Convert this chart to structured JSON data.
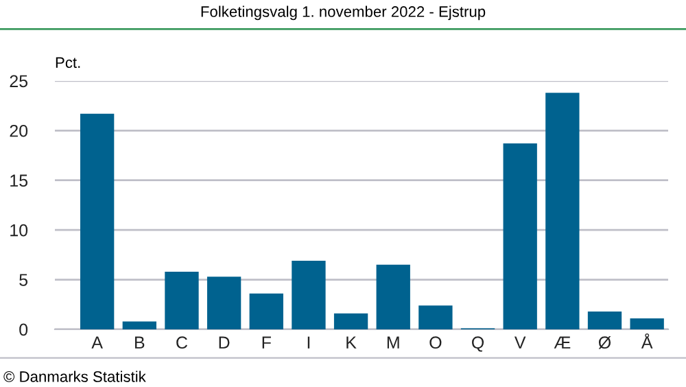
{
  "chart_data": {
    "type": "bar",
    "title": "Folketingsvalg 1. november 2022 - Ejstrup",
    "ylabel": "Pct.",
    "categories": [
      "A",
      "B",
      "C",
      "D",
      "F",
      "I",
      "K",
      "M",
      "O",
      "Q",
      "V",
      "Æ",
      "Ø",
      "Å"
    ],
    "values": [
      21.7,
      0.8,
      5.8,
      5.3,
      3.6,
      6.9,
      1.6,
      6.5,
      2.4,
      0.1,
      18.7,
      23.8,
      1.8,
      1.1
    ],
    "color": "#00628f",
    "ylim": [
      0,
      25
    ],
    "yticks": [
      0,
      5,
      10,
      15,
      20,
      25
    ],
    "grid": "y",
    "legend": false,
    "annotations": [
      "© Danmarks Statistik"
    ]
  }
}
